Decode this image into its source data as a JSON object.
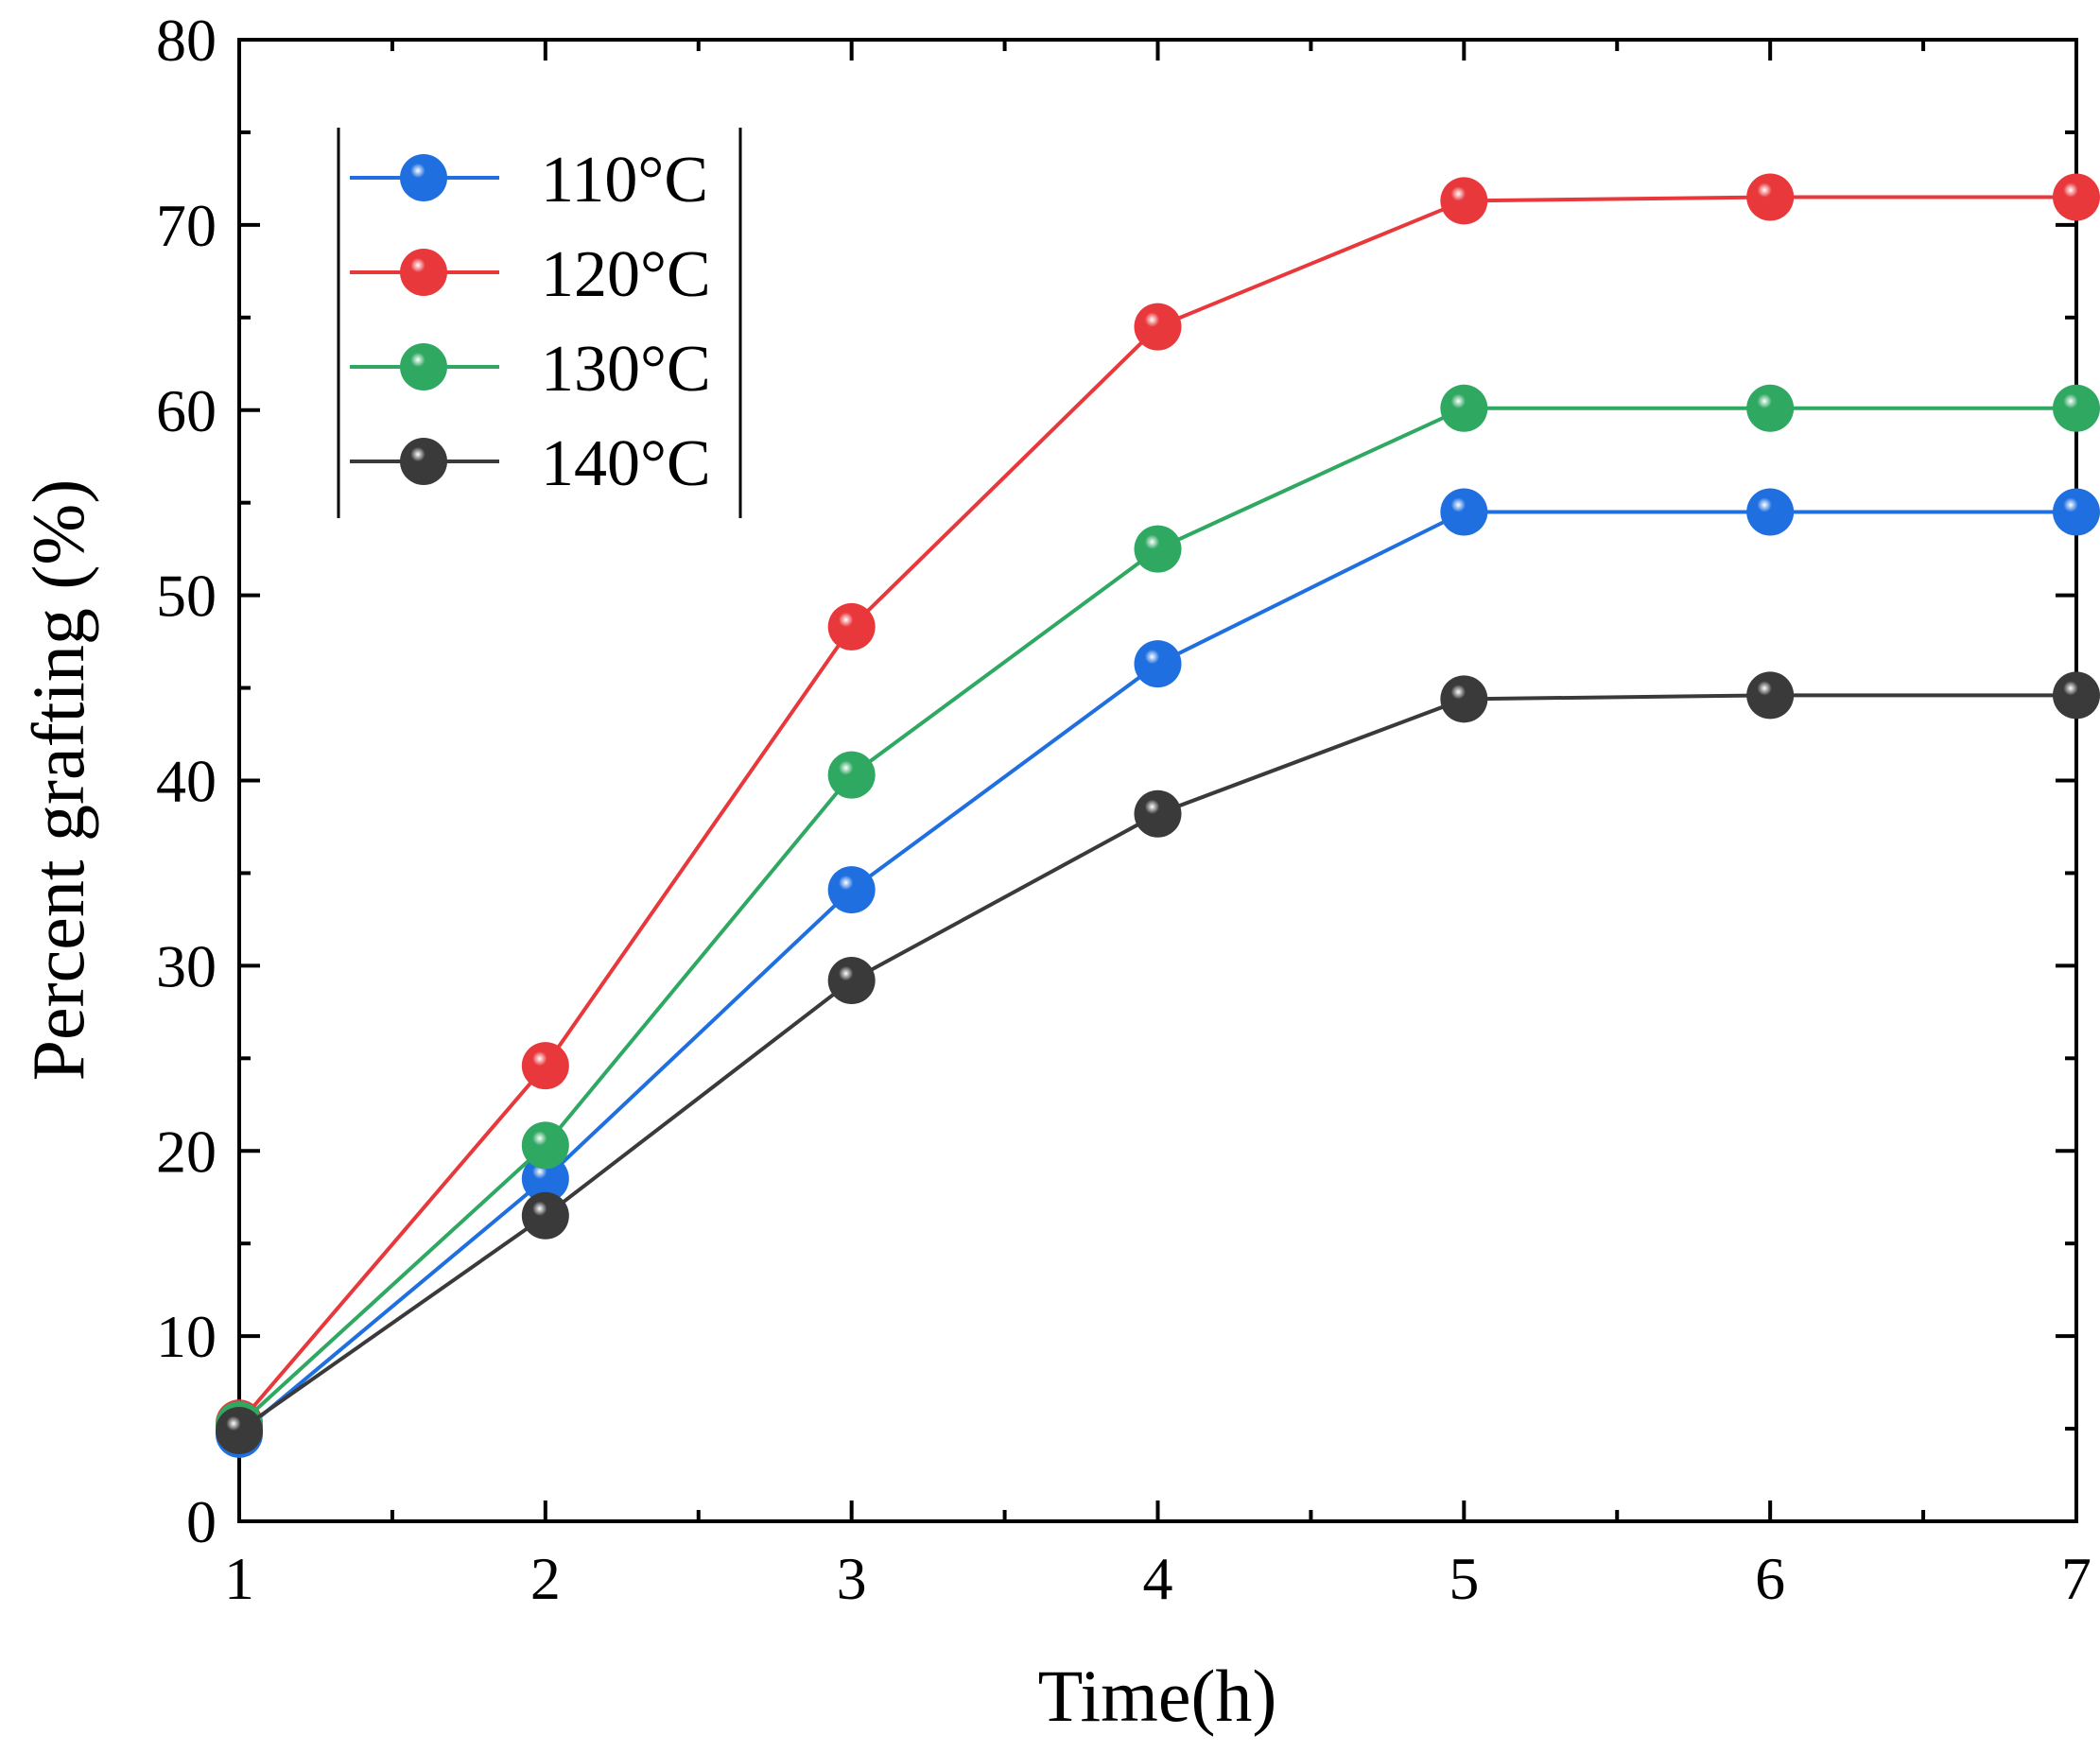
{
  "chart_data": {
    "type": "line",
    "xlabel": "Time(h)",
    "ylabel": "Percent grafting (%)",
    "xlim": [
      1,
      7
    ],
    "ylim": [
      0,
      80
    ],
    "x": [
      1,
      2,
      3,
      4,
      5,
      6,
      7
    ],
    "xticks": [
      "1",
      "2",
      "3",
      "4",
      "5",
      "6",
      "7"
    ],
    "yticks": [
      "0",
      "10",
      "20",
      "30",
      "40",
      "50",
      "60",
      "70",
      "80"
    ],
    "grid": false,
    "legend_position": "top-left",
    "series": [
      {
        "name": "110°C",
        "color": "#1f6fe0",
        "values": [
          4.7,
          18.5,
          34.1,
          46.3,
          54.5,
          54.5,
          54.5
        ]
      },
      {
        "name": "120°C",
        "color": "#e8383b",
        "values": [
          5.3,
          24.6,
          48.3,
          64.5,
          71.3,
          71.5,
          71.5
        ]
      },
      {
        "name": "130°C",
        "color": "#2fa862",
        "values": [
          5.2,
          20.3,
          40.3,
          52.5,
          60.1,
          60.1,
          60.1
        ]
      },
      {
        "name": "140°C",
        "color": "#3a3a3a",
        "values": [
          4.9,
          16.5,
          29.2,
          38.2,
          44.4,
          44.6,
          44.6
        ]
      }
    ]
  }
}
